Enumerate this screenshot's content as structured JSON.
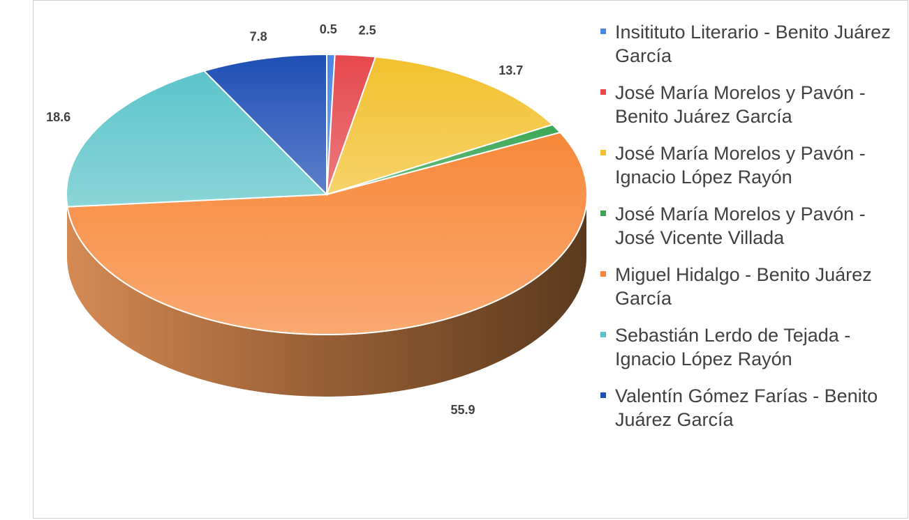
{
  "chart_data": {
    "type": "pie",
    "style": "3d",
    "title": "",
    "legend_position": "right",
    "slices": [
      {
        "label": "Insitituto Literario - Benito Juárez García",
        "value": 0.5,
        "display": "0.5",
        "color": "#4a86e8"
      },
      {
        "label": "José María Morelos y Pavón - Benito Juárez García",
        "value": 2.5,
        "display": "2.5",
        "color": "#e5484d"
      },
      {
        "label": "José María Morelos y Pavón - Ignacio López Rayón",
        "value": 13.7,
        "display": "13.7",
        "color": "#f2c12e"
      },
      {
        "label": "José María Morelos y Pavón - José Vicente Villada",
        "value": 1.0,
        "display": "1.0",
        "color": "#3aa655"
      },
      {
        "label": "Miguel Hidalgo - Benito Juárez García",
        "value": 55.9,
        "display": "55.9",
        "color": "#f7883a"
      },
      {
        "label": "Sebastián Lerdo de Tejada - Ignacio López Rayón",
        "value": 18.6,
        "display": "18.6",
        "color": "#5cc4c9"
      },
      {
        "label": "Valentín Gómez Farías - Benito Juárez García",
        "value": 7.8,
        "display": "7.8",
        "color": "#1f4fb5"
      }
    ]
  }
}
